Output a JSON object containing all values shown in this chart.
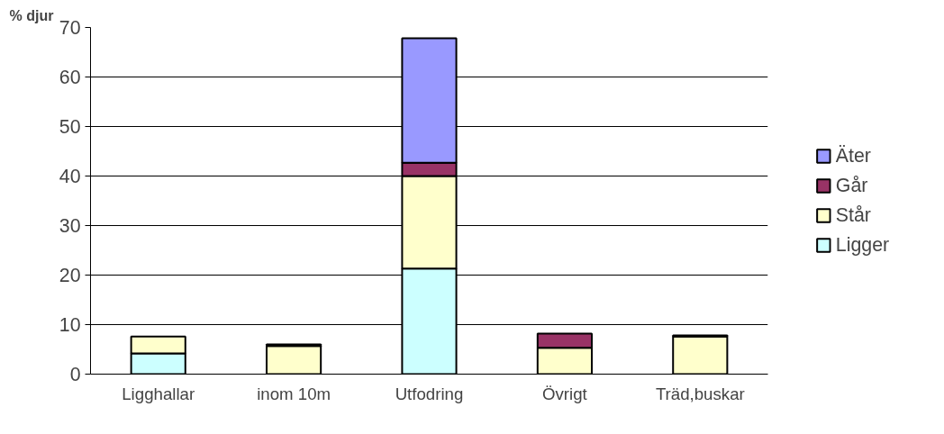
{
  "chart_data": {
    "type": "bar",
    "stacked": true,
    "ylabel": "% djur",
    "categories": [
      "Ligghallar",
      "inom 10m",
      "Utfodring",
      "Övrigt",
      "Träd,buskar"
    ],
    "series": [
      {
        "name": "Ligger",
        "color": "#ccffff",
        "values": [
          4.2,
          0,
          21.3,
          0,
          0
        ]
      },
      {
        "name": "Står",
        "color": "#ffffcc",
        "values": [
          3.4,
          5.7,
          18.7,
          5.3,
          7.6
        ]
      },
      {
        "name": "Går",
        "color": "#993366",
        "values": [
          0,
          0.3,
          2.7,
          2.9,
          0.2
        ]
      },
      {
        "name": "Äter",
        "color": "#9999ff",
        "values": [
          0,
          0,
          25.1,
          0,
          0
        ]
      }
    ],
    "ylim": [
      0,
      70
    ],
    "yticks": [
      0,
      10,
      20,
      30,
      40,
      50,
      60,
      70
    ],
    "grid": "y",
    "legend": "right"
  }
}
